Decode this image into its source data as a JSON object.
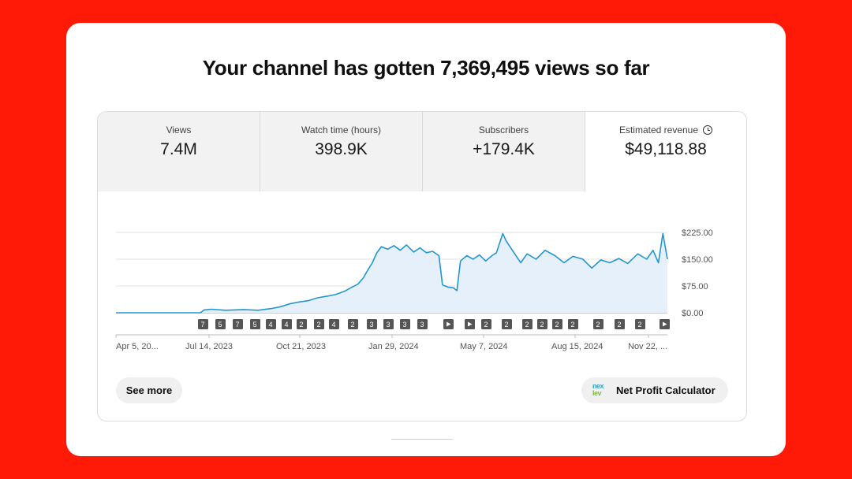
{
  "headline": "Your channel has gotten 7,369,495 views so far",
  "metrics": [
    {
      "label": "Views",
      "value": "7.4M"
    },
    {
      "label": "Watch time (hours)",
      "value": "398.9K"
    },
    {
      "label": "Subscribers",
      "value": "+179.4K"
    },
    {
      "label": "Estimated revenue",
      "value": "$49,118.88",
      "icon": "clock-icon"
    }
  ],
  "buttons": {
    "see_more": "See more",
    "net_profit": "Net Profit Calculator",
    "net_profit_logo_top": "nex",
    "net_profit_logo_bottom": "lev"
  },
  "chart_data": {
    "type": "area",
    "title": "",
    "xlabel": "",
    "ylabel": "",
    "y_ticks": [
      "$225.00",
      "$150.00",
      "$75.00",
      "$0.00"
    ],
    "ylim": [
      0,
      225
    ],
    "x_tick_labels": [
      "Apr 5, 20...",
      "Jul 14, 2023",
      "Oct 21, 2023",
      "Jan 29, 2024",
      "May 7, 2024",
      "Aug 15, 2024",
      "Nov 22, ..."
    ],
    "x_range": [
      "2023-04-05",
      "2024-12-08"
    ],
    "series": [
      {
        "color": "#2196d0",
        "points": [
          [
            "2023-04-05",
            0
          ],
          [
            "2023-06-01",
            0
          ],
          [
            "2023-07-08",
            0
          ],
          [
            "2023-07-12",
            8
          ],
          [
            "2023-07-20",
            10
          ],
          [
            "2023-08-05",
            7
          ],
          [
            "2023-08-25",
            9
          ],
          [
            "2023-09-10",
            7
          ],
          [
            "2023-09-25",
            12
          ],
          [
            "2023-10-05",
            17
          ],
          [
            "2023-10-15",
            25
          ],
          [
            "2023-10-25",
            30
          ],
          [
            "2023-11-05",
            34
          ],
          [
            "2023-11-15",
            42
          ],
          [
            "2023-11-25",
            46
          ],
          [
            "2023-12-05",
            51
          ],
          [
            "2023-12-15",
            60
          ],
          [
            "2023-12-22",
            70
          ],
          [
            "2023-12-30",
            80
          ],
          [
            "2024-01-05",
            98
          ],
          [
            "2024-01-10",
            120
          ],
          [
            "2024-01-15",
            140
          ],
          [
            "2024-01-20",
            168
          ],
          [
            "2024-01-25",
            185
          ],
          [
            "2024-02-01",
            178
          ],
          [
            "2024-02-08",
            188
          ],
          [
            "2024-02-15",
            175
          ],
          [
            "2024-02-22",
            190
          ],
          [
            "2024-03-01",
            170
          ],
          [
            "2024-03-08",
            182
          ],
          [
            "2024-03-15",
            168
          ],
          [
            "2024-03-22",
            172
          ],
          [
            "2024-03-29",
            160
          ],
          [
            "2024-04-02",
            78
          ],
          [
            "2024-04-08",
            72
          ],
          [
            "2024-04-14",
            70
          ],
          [
            "2024-04-18",
            62
          ],
          [
            "2024-04-22",
            145
          ],
          [
            "2024-04-29",
            160
          ],
          [
            "2024-05-06",
            150
          ],
          [
            "2024-05-13",
            162
          ],
          [
            "2024-05-20",
            145
          ],
          [
            "2024-05-27",
            160
          ],
          [
            "2024-06-01",
            168
          ],
          [
            "2024-06-08",
            222
          ],
          [
            "2024-06-12",
            200
          ],
          [
            "2024-06-20",
            170
          ],
          [
            "2024-06-28",
            140
          ],
          [
            "2024-07-05",
            165
          ],
          [
            "2024-07-15",
            150
          ],
          [
            "2024-07-25",
            175
          ],
          [
            "2024-08-05",
            160
          ],
          [
            "2024-08-15",
            140
          ],
          [
            "2024-08-25",
            158
          ],
          [
            "2024-09-05",
            150
          ],
          [
            "2024-09-15",
            125
          ],
          [
            "2024-09-25",
            148
          ],
          [
            "2024-10-05",
            140
          ],
          [
            "2024-10-15",
            152
          ],
          [
            "2024-10-25",
            138
          ],
          [
            "2024-11-05",
            165
          ],
          [
            "2024-11-15",
            150
          ],
          [
            "2024-11-22",
            175
          ],
          [
            "2024-11-28",
            140
          ],
          [
            "2024-12-03",
            222
          ],
          [
            "2024-12-08",
            150
          ]
        ]
      }
    ],
    "markers": [
      "7",
      "5",
      "7",
      "5",
      "4",
      "4",
      "2",
      "2",
      "4",
      "2",
      "3",
      "3",
      "3",
      "3",
      "play",
      "play",
      "2",
      "2",
      "2",
      "2",
      "2",
      "2",
      "2",
      "2",
      "2",
      "play"
    ]
  }
}
